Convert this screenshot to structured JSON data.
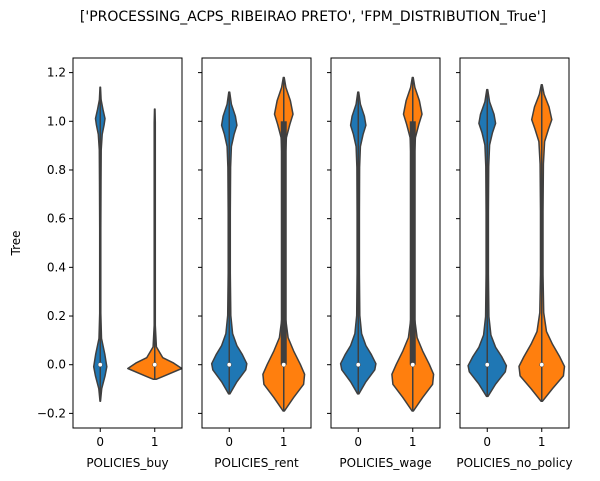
{
  "figure": {
    "title": "['PROCESSING_ACPS_RIBEIRAO PRETO', 'FPM_DISTRIBUTION_True']",
    "ylabel": "Tree"
  },
  "chart_data": [
    {
      "type": "violin",
      "xlabel": "POLICIES_buy",
      "ylabel": "Tree",
      "categories": [
        "0",
        "1"
      ],
      "ylim": [
        -0.26,
        1.26
      ],
      "yticks": [
        "−0.2",
        "0.0",
        "0.2",
        "0.4",
        "0.6",
        "0.8",
        "1.0",
        "1.2"
      ],
      "ytick_values": [
        -0.2,
        0.0,
        0.2,
        0.4,
        0.6,
        0.8,
        1.0,
        1.2
      ],
      "violins": [
        {
          "category": "0",
          "color": "#1f77b4",
          "extent": [
            -0.15,
            1.14
          ],
          "median": 0.0,
          "q1": 0.0,
          "q3": 0.0
        },
        {
          "category": "1",
          "color": "#ff7f0e",
          "extent": [
            -0.06,
            1.05
          ],
          "median": 0.0,
          "q1": 0.0,
          "q3": 0.0
        }
      ]
    },
    {
      "type": "violin",
      "xlabel": "POLICIES_rent",
      "categories": [
        "0",
        "1"
      ],
      "ylim": [
        -0.26,
        1.26
      ],
      "violins": [
        {
          "category": "0",
          "color": "#1f77b4",
          "extent": [
            -0.12,
            1.12
          ],
          "median": 0.0,
          "q1": 0.0,
          "q3": 0.0
        },
        {
          "category": "1",
          "color": "#ff7f0e",
          "extent": [
            -0.19,
            1.18
          ],
          "median": 0.0,
          "q1": 0.0,
          "q3": 1.0
        }
      ]
    },
    {
      "type": "violin",
      "xlabel": "POLICIES_wage",
      "categories": [
        "0",
        "1"
      ],
      "ylim": [
        -0.26,
        1.26
      ],
      "violins": [
        {
          "category": "0",
          "color": "#1f77b4",
          "extent": [
            -0.12,
            1.12
          ],
          "median": 0.0,
          "q1": 0.0,
          "q3": 0.0
        },
        {
          "category": "1",
          "color": "#ff7f0e",
          "extent": [
            -0.19,
            1.18
          ],
          "median": 0.0,
          "q1": 0.0,
          "q3": 1.0
        }
      ]
    },
    {
      "type": "violin",
      "xlabel": "POLICIES_no_policy",
      "categories": [
        "0",
        "1"
      ],
      "ylim": [
        -0.26,
        1.26
      ],
      "violins": [
        {
          "category": "0",
          "color": "#1f77b4",
          "extent": [
            -0.13,
            1.13
          ],
          "median": 0.0,
          "q1": 0.0,
          "q3": 0.0
        },
        {
          "category": "1",
          "color": "#ff7f0e",
          "extent": [
            -0.15,
            1.15
          ],
          "median": 0.0,
          "q1": 0.0,
          "q3": 0.0
        }
      ]
    }
  ]
}
